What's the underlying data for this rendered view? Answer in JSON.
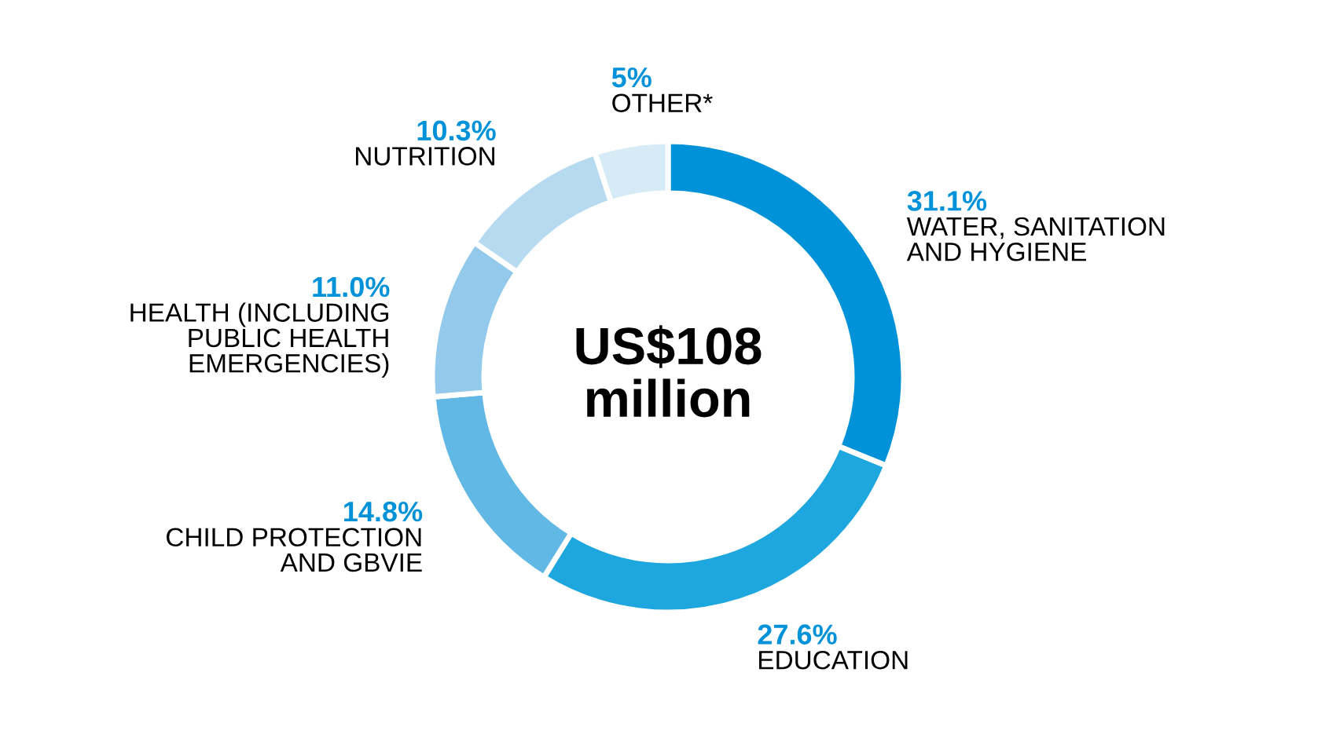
{
  "chart_data": {
    "type": "donut",
    "categories": [
      "WATER, SANITATION\nAND HYGIENE",
      "EDUCATION",
      "CHILD PROTECTION\nAND GBVIE",
      "HEALTH (INCLUDING\nPUBLIC HEALTH\nEMERGENCIES)",
      "NUTRITION",
      "OTHER*"
    ],
    "values": [
      31.1,
      27.6,
      14.8,
      11.0,
      10.3,
      5
    ],
    "value_labels": [
      "31.1%",
      "27.6%",
      "14.8%",
      "11.0%",
      "10.3%",
      "5%"
    ],
    "colors": [
      "#0092d8",
      "#1ea6de",
      "#62b8e4",
      "#93c9eb",
      "#b6dbf1",
      "#d6ebf6"
    ],
    "annotations": [
      "US$108\nmillion"
    ],
    "legend": false
  }
}
